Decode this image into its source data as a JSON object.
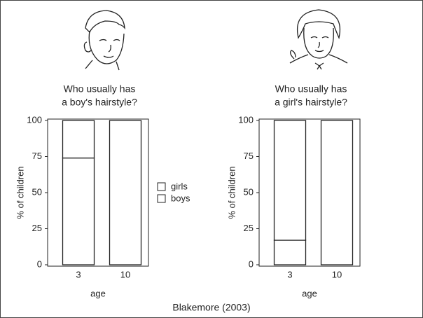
{
  "chart_data": [
    {
      "type": "bar",
      "stacked": true,
      "title": [
        "Who usually has",
        "a boy's hairstyle?"
      ],
      "categories": [
        "3",
        "10"
      ],
      "xlabel": "age",
      "ylabel": "% of children",
      "ylim": [
        0,
        100
      ],
      "yticks": [
        0,
        25,
        50,
        75,
        100
      ],
      "legend": "right",
      "series": [
        {
          "name": "boys",
          "color": "#ffffff",
          "values": [
            74,
            100
          ]
        },
        {
          "name": "girls",
          "color": "#ffffff",
          "values": [
            26,
            0
          ]
        }
      ]
    },
    {
      "type": "bar",
      "stacked": true,
      "title": [
        "Who usually has",
        "a girl's hairstyle?"
      ],
      "categories": [
        "3",
        "10"
      ],
      "xlabel": "age",
      "ylabel": "% of children",
      "ylim": [
        0,
        100
      ],
      "yticks": [
        0,
        25,
        50,
        75,
        100
      ],
      "series": [
        {
          "color": "#ffffff",
          "values": [
            17,
            0
          ]
        },
        {
          "color": "#ffffff",
          "values": [
            83,
            100
          ]
        }
      ]
    }
  ],
  "source": "Blakemore (2003)"
}
